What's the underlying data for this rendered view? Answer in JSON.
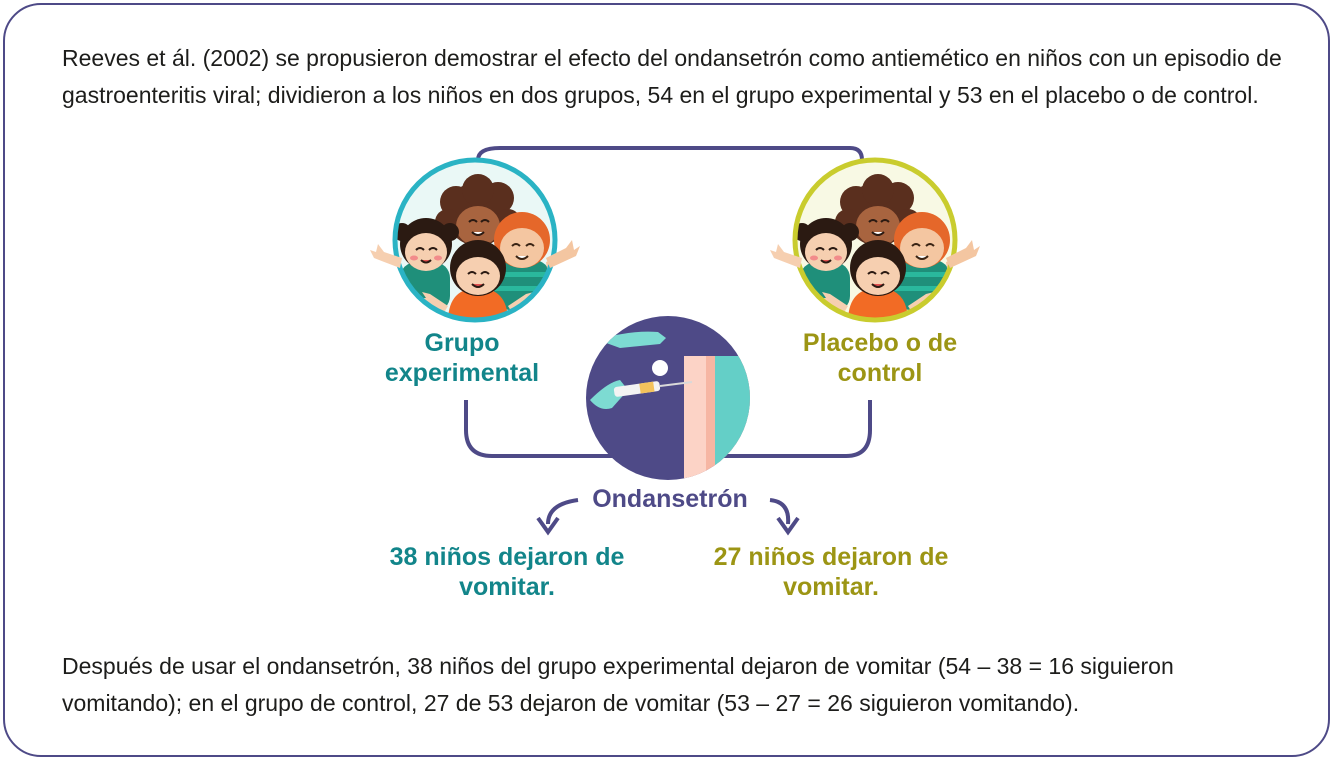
{
  "intro_text": "Reeves et ál. (2002) se propusieron demostrar el efecto del ondansetrón como antiemético en niños con un episodio de gastroenteritis viral; dividieron a los niños en dos grupos, 54 en el grupo experimental y 53 en el placebo o de control.",
  "groups": {
    "experimental": {
      "label_line1": "Grupo",
      "label_line2": "experimental",
      "result_line1": "38 niños dejaron de",
      "result_line2": "vomitar."
    },
    "control": {
      "label_line1": "Placebo o de",
      "label_line2": "control",
      "result_line1": "27 niños dejaron de",
      "result_line2": "vomitar."
    }
  },
  "treatment_label": "Ondansetrón",
  "conclusion_text": "Después de usar el ondansetrón, 38 niños del grupo  experimental dejaron de vomitar (54 – 38 = 16 siguieron vomitando); en el grupo de control, 27 de 53 dejaron de vomitar (53 – 27 = 26 siguieron vomitando).",
  "colors": {
    "frame": "#4e4a87",
    "experimental": "#12858a",
    "control": "#9c9514",
    "treatment": "#4e4a87"
  },
  "icons": [
    "children-group-icon",
    "children-group-icon",
    "injection-icon",
    "arrow-left-curve-icon",
    "arrow-right-curve-icon"
  ]
}
